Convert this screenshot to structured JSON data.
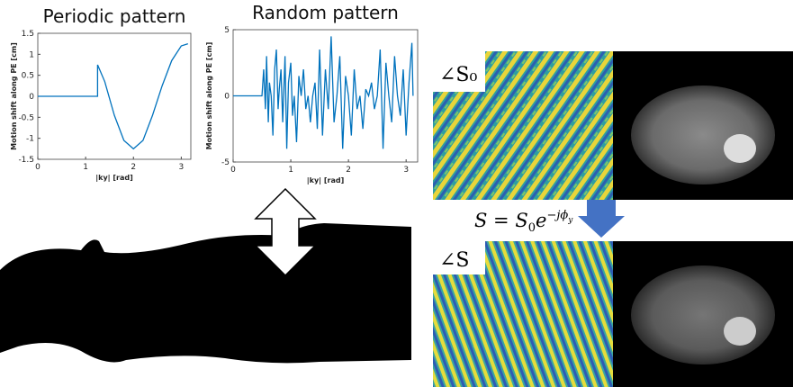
{
  "chart_data": [
    {
      "type": "line",
      "title": "Periodic pattern",
      "x_label": "|ky| [rad]",
      "y_label": "Motion shift along PE [cm]",
      "x": [
        0,
        1.25,
        1.25,
        1.4,
        1.6,
        1.8,
        2.0,
        2.2,
        2.4,
        2.6,
        2.8,
        3.0,
        3.14
      ],
      "series": [
        {
          "color": "#0072bd",
          "values": [
            0,
            0,
            0.75,
            0.35,
            -0.45,
            -1.05,
            -1.25,
            -1.05,
            -0.45,
            0.25,
            0.85,
            1.2,
            1.25
          ]
        }
      ],
      "xlim": [
        0,
        3.2
      ],
      "ylim": [
        -1.5,
        1.5
      ],
      "xticks": [
        0,
        1,
        2,
        3
      ],
      "yticks": [
        -1.5,
        -1,
        -0.5,
        0,
        0.5,
        1,
        1.5
      ]
    },
    {
      "type": "line",
      "title": "Random pattern",
      "x_label": "|ky| [rad]",
      "y_label": "Motion shift along PE [cm]",
      "x": [
        0,
        0.5,
        0.53,
        0.56,
        0.58,
        0.61,
        0.63,
        0.66,
        0.69,
        0.72,
        0.75,
        0.78,
        0.8,
        0.83,
        0.86,
        0.9,
        0.93,
        0.96,
        1.0,
        1.03,
        1.06,
        1.1,
        1.14,
        1.18,
        1.22,
        1.26,
        1.3,
        1.34,
        1.38,
        1.42,
        1.46,
        1.5,
        1.55,
        1.6,
        1.65,
        1.7,
        1.75,
        1.8,
        1.85,
        1.9,
        1.95,
        2.0,
        2.05,
        2.1,
        2.15,
        2.2,
        2.25,
        2.3,
        2.35,
        2.4,
        2.45,
        2.5,
        2.55,
        2.6,
        2.65,
        2.7,
        2.75,
        2.8,
        2.85,
        2.9,
        2.95,
        3.0,
        3.05,
        3.1,
        3.12
      ],
      "series": [
        {
          "color": "#0072bd",
          "values": [
            0,
            0,
            2,
            -1,
            3,
            -2,
            1,
            0,
            -3,
            2,
            3.5,
            -1,
            0.5,
            2,
            -2,
            3,
            -4,
            1,
            2.5,
            -1.5,
            0,
            -3.5,
            1.5,
            0,
            2,
            -1,
            0,
            -2,
            0,
            1,
            -2.5,
            3.5,
            -3,
            2,
            -1,
            4.5,
            -2,
            0,
            3,
            -4,
            1.5,
            0,
            -3,
            2,
            -1,
            0,
            -2.5,
            0.5,
            0,
            1,
            -1,
            0,
            3.5,
            -4,
            2.5,
            0,
            -2,
            3,
            0,
            -1.5,
            2,
            -3,
            1,
            4,
            0
          ]
        }
      ],
      "xlim": [
        0,
        3.2
      ],
      "ylim": [
        -5,
        5
      ],
      "xticks": [
        0,
        1,
        2,
        3
      ],
      "yticks": [
        -5,
        0,
        5
      ]
    }
  ],
  "labels": {
    "phase_original": "∠S₀",
    "phase_corrupted": "∠S"
  },
  "formula": {
    "main": "S = S",
    "main_sub": "0",
    "base": "e",
    "exponent": "−jϕ",
    "exponent_sub": "y"
  }
}
